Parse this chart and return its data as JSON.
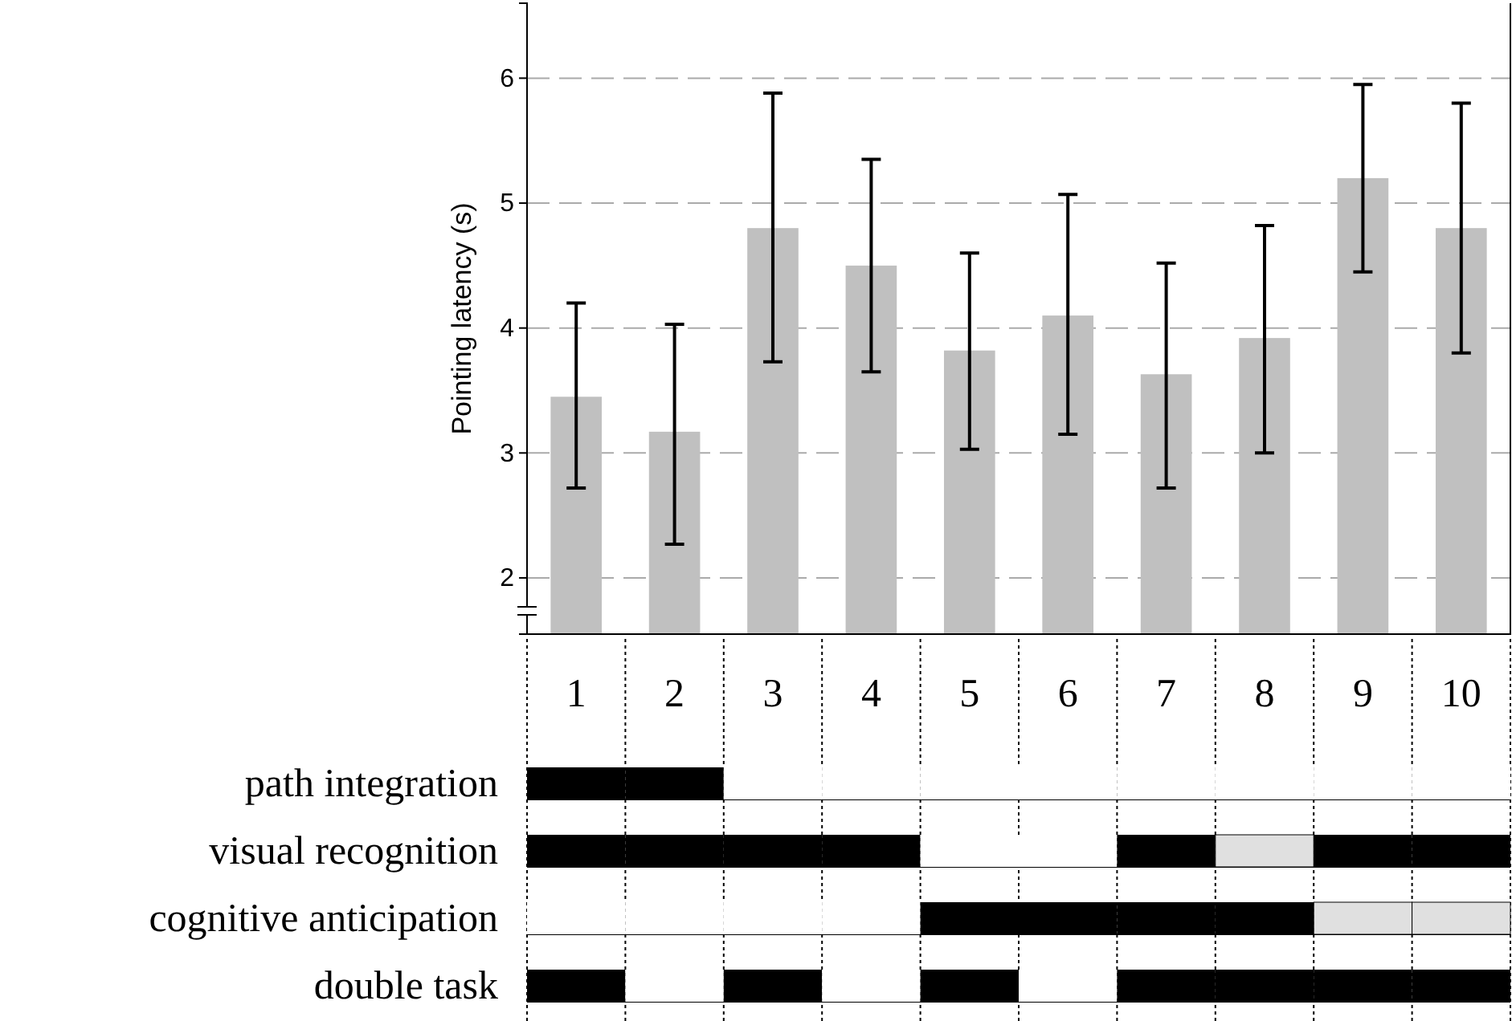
{
  "chart_data": [
    {
      "type": "bar",
      "ylabel": "Pointing latency (s)",
      "categories": [
        "1",
        "2",
        "3",
        "4",
        "5",
        "6",
        "7",
        "8",
        "9",
        "10"
      ],
      "values": [
        3.45,
        3.17,
        4.8,
        4.5,
        3.82,
        4.1,
        3.63,
        3.92,
        5.2,
        4.8
      ],
      "errors": [
        [
          2.72,
          4.2
        ],
        [
          2.27,
          4.03
        ],
        [
          3.73,
          5.88
        ],
        [
          3.65,
          5.35
        ],
        [
          3.03,
          4.6
        ],
        [
          3.15,
          5.07
        ],
        [
          2.72,
          4.52
        ],
        [
          3.0,
          4.82
        ],
        [
          4.45,
          5.95
        ],
        [
          3.8,
          5.8
        ]
      ],
      "color": "#c0c0c0",
      "ylim": [
        1.55,
        6.6
      ],
      "yticks": [
        2,
        3,
        4,
        5,
        6
      ],
      "grid": "y"
    },
    {
      "type": "other",
      "annotations": [
        "path integration",
        "visual recognition",
        "cognitive anticipation",
        "double task"
      ]
    }
  ]
}
